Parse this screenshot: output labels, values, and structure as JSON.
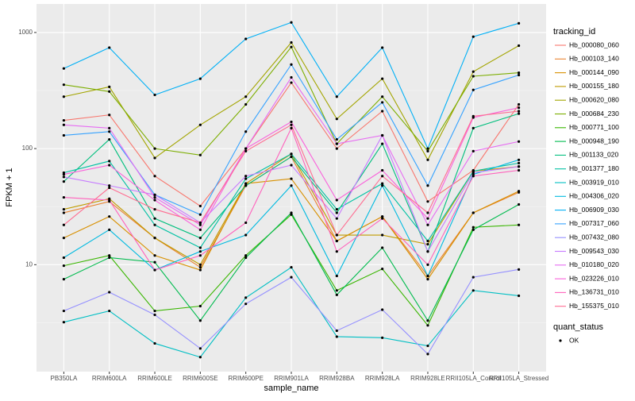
{
  "chart_data": {
    "type": "line",
    "log_y": true,
    "grid": true,
    "x_label": "sample_name",
    "y_label": "FPKM + 1",
    "legend_title": "tracking_id",
    "legend_position": "right",
    "point_legend": {
      "title": "quant_status",
      "labels": [
        "OK"
      ]
    },
    "categories": [
      "PB350LA",
      "RRIM600LA",
      "RRIM600LE",
      "RRIM600SE",
      "RRIM600PE",
      "RRIM901LA",
      "RRIM928BA",
      "RRIM928LA",
      "RRIM928LE",
      "RRII105LA_Control",
      "RRII105LA_Stressed"
    ],
    "ylim": [
      1.2,
      1760
    ],
    "yticks": [
      10,
      100,
      1000
    ],
    "series": [
      {
        "name": "Hb_000080_060",
        "color": "#F8766D",
        "values": [
          175,
          195,
          58,
          32,
          100,
          370,
          100,
          210,
          35,
          65,
          240
        ]
      },
      {
        "name": "Hb_000103_140",
        "color": "#EA8331",
        "values": [
          28,
          35,
          17,
          9.5,
          48,
          85,
          16,
          26,
          8,
          28,
          42
        ]
      },
      {
        "name": "Hb_000144_090",
        "color": "#D89000",
        "values": [
          17,
          26,
          12,
          9,
          50,
          55,
          16,
          26,
          7.5,
          28,
          43
        ]
      },
      {
        "name": "Hb_000155_180",
        "color": "#C09B00",
        "values": [
          30,
          37,
          17,
          10,
          50,
          90,
          18,
          18,
          15,
          64,
          70
        ]
      },
      {
        "name": "Hb_000620_080",
        "color": "#A3A500",
        "values": [
          280,
          340,
          83,
          160,
          280,
          820,
          180,
          400,
          80,
          460,
          770
        ]
      },
      {
        "name": "Hb_000684_230",
        "color": "#7CAE00",
        "values": [
          355,
          310,
          100,
          88,
          240,
          750,
          110,
          280,
          95,
          420,
          450
        ]
      },
      {
        "name": "Hb_000771_100",
        "color": "#39B600",
        "values": [
          9.8,
          12,
          4,
          4.4,
          12,
          27,
          6,
          9.2,
          3,
          21,
          22
        ]
      },
      {
        "name": "Hb_000948_190",
        "color": "#00BB4E",
        "values": [
          7.5,
          11.5,
          10.5,
          3.3,
          11.5,
          28,
          5.5,
          14,
          3.3,
          20,
          33
        ]
      },
      {
        "name": "Hb_001133_020",
        "color": "#00BF7D",
        "values": [
          52,
          120,
          25,
          17,
          48,
          85,
          28,
          110,
          13,
          150,
          200
        ]
      },
      {
        "name": "Hb_001377_180",
        "color": "#00C1A3",
        "values": [
          62,
          78,
          22,
          14,
          55,
          90,
          30,
          50,
          16,
          64,
          75
        ]
      },
      {
        "name": "Hb_003919_010",
        "color": "#00BFC4",
        "values": [
          3.2,
          4,
          2.1,
          1.6,
          5.2,
          9.5,
          2.4,
          2.35,
          2,
          6,
          5.4
        ]
      },
      {
        "name": "Hb_004306_020",
        "color": "#00BAE0",
        "values": [
          11.5,
          20,
          9,
          13,
          18,
          48,
          8,
          48,
          8,
          60,
          80
        ]
      },
      {
        "name": "Hb_006909_030",
        "color": "#00B0F6",
        "values": [
          490,
          740,
          290,
          400,
          880,
          1220,
          280,
          740,
          100,
          920,
          1200
        ]
      },
      {
        "name": "Hb_007317_060",
        "color": "#35A2FF",
        "values": [
          130,
          140,
          40,
          27,
          140,
          530,
          120,
          250,
          48,
          320,
          430
        ]
      },
      {
        "name": "Hb_007432_080",
        "color": "#9590FF",
        "values": [
          4,
          5.8,
          3.7,
          1.9,
          4.6,
          7.8,
          2.7,
          4.1,
          1.7,
          7.8,
          9.1
        ]
      },
      {
        "name": "Hb_009543_030",
        "color": "#C77CFF",
        "values": [
          57,
          48,
          40,
          23,
          58,
          72,
          25,
          130,
          13,
          62,
          70
        ]
      },
      {
        "name": "Hb_010180_020",
        "color": "#E76BF3",
        "values": [
          160,
          150,
          38,
          22,
          100,
          410,
          110,
          130,
          22,
          95,
          115
        ]
      },
      {
        "name": "Hb_023226_010",
        "color": "#FA62DB",
        "values": [
          60,
          72,
          36,
          20,
          100,
          170,
          36,
          65,
          25,
          185,
          225
        ]
      },
      {
        "name": "Hb_136731_010",
        "color": "#FF62BC",
        "values": [
          38,
          36,
          9,
          12,
          23,
          150,
          13,
          25,
          10,
          58,
          65
        ]
      },
      {
        "name": "Hb_155375_010",
        "color": "#FF6C91",
        "values": [
          22,
          46,
          30,
          23,
          95,
          160,
          18,
          58,
          28,
          190,
          210
        ]
      }
    ]
  }
}
